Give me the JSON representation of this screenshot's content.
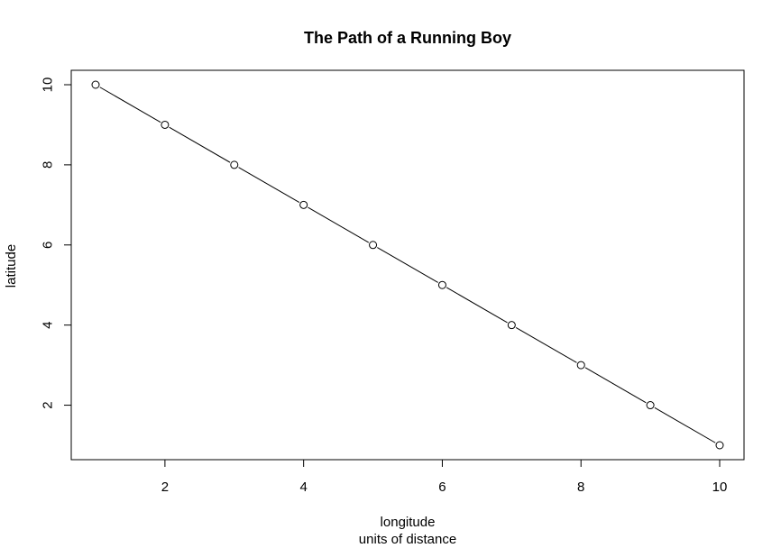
{
  "chart_data": {
    "type": "line",
    "title": "The Path of a Running Boy",
    "xlabel": "longitude",
    "xsublabel": "units of distance",
    "ylabel": "latitude",
    "x": [
      1,
      2,
      3,
      4,
      5,
      6,
      7,
      8,
      9,
      10
    ],
    "series": [
      {
        "values": [
          10,
          9,
          8,
          7,
          6,
          5,
          4,
          3,
          2,
          1
        ]
      }
    ],
    "xlim": [
      1,
      10
    ],
    "ylim": [
      1,
      10
    ],
    "xticks": [
      2,
      4,
      6,
      8,
      10
    ],
    "yticks": [
      2,
      4,
      6,
      8,
      10
    ],
    "grid": false,
    "markers": "open-circle",
    "colors": {
      "line": "#000000",
      "marker_stroke": "#000000",
      "background": "#ffffff"
    }
  }
}
